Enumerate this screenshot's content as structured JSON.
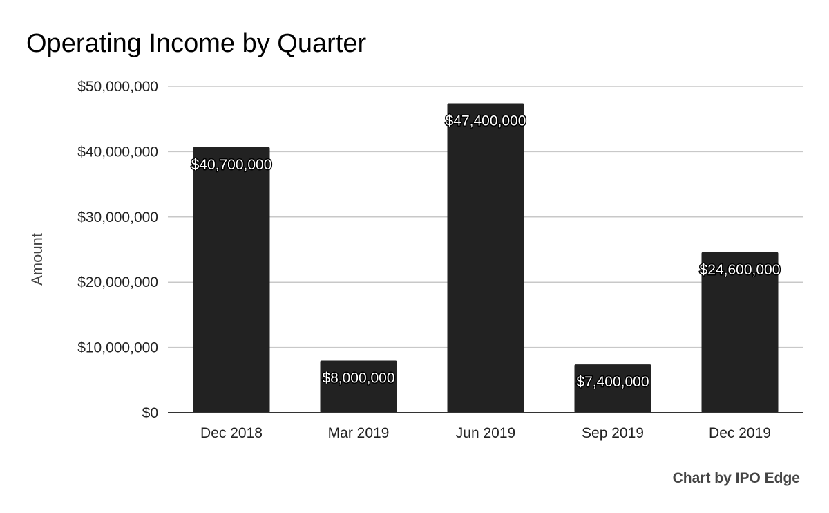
{
  "chart_data": {
    "type": "bar",
    "title": "Operating Income by Quarter",
    "xlabel": "",
    "ylabel": "Amount",
    "categories": [
      "Dec 2018",
      "Mar 2019",
      "Jun 2019",
      "Sep 2019",
      "Dec 2019"
    ],
    "series": [
      {
        "values": [
          40700000,
          8000000,
          47400000,
          7400000,
          24600000
        ],
        "data_labels": [
          "$40,700,000",
          "$8,000,000",
          "$47,400,000",
          "$7,400,000",
          "$24,600,000"
        ],
        "color": "#222222"
      }
    ],
    "ylim": [
      0,
      50000000
    ],
    "yticks": [
      0,
      10000000,
      20000000,
      30000000,
      40000000,
      50000000
    ],
    "ytick_labels": [
      "$0",
      "$10,000,000",
      "$20,000,000",
      "$30,000,000",
      "$40,000,000",
      "$50,000,000"
    ],
    "grid": true,
    "legend": "none"
  },
  "credit": "Chart by IPO Edge"
}
